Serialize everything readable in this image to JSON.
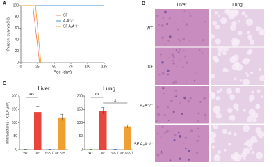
{
  "panels": {
    "labels": [
      "A",
      "B",
      "C"
    ]
  },
  "chart_data": [
    {
      "type": "line",
      "xlabel": "Age (day)",
      "ylabel": "Percent survival(%)",
      "xlim": [
        0,
        125
      ],
      "xticks": [
        0,
        25,
        50,
        75,
        100,
        125
      ],
      "ylim": [
        0,
        100
      ],
      "yticks": [
        0,
        20,
        40,
        60,
        80,
        100
      ],
      "legend": "upper right",
      "series": [
        {
          "name": "SF",
          "color": "#f08070",
          "x": [
            0,
            18,
            20,
            22,
            24,
            26,
            28
          ],
          "values": [
            100,
            100,
            80,
            60,
            40,
            20,
            0
          ]
        },
        {
          "name": "A₂A⁻/⁻",
          "color": "#4a90d9",
          "x": [
            0,
            125
          ],
          "values": [
            100,
            100
          ]
        },
        {
          "name": "SF A₂A⁻/⁻",
          "color": "#f0a030",
          "x": [
            0,
            22,
            24,
            26,
            28,
            30
          ],
          "values": [
            100,
            100,
            75,
            50,
            25,
            0
          ]
        }
      ]
    },
    {
      "type": "bar",
      "title": "Liver",
      "ylabel": "Infiltrated area ( X 10⁴ μm²)",
      "categories": [
        "WT",
        "SF",
        "A₂A⁻/⁻",
        "SF A₂A⁻/⁻"
      ],
      "values": [
        1,
        140,
        1,
        120
      ],
      "errors": [
        0.5,
        20,
        0.5,
        12
      ],
      "colors": [
        "#6ab04c",
        "#e8453c",
        "#4a90d9",
        "#f0a030"
      ],
      "ylim": [
        0,
        200
      ],
      "yticks": [
        0,
        50,
        100,
        150,
        200
      ],
      "annotations": [
        "***"
      ]
    },
    {
      "type": "bar",
      "title": "Lung",
      "categories": [
        "WT",
        "SF",
        "A₂A⁻/⁻",
        "SF A₂A⁻/⁻"
      ],
      "values": [
        1,
        145,
        1,
        87
      ],
      "errors": [
        0.5,
        12,
        0.5,
        6
      ],
      "colors": [
        "#6ab04c",
        "#e8453c",
        "#4a90d9",
        "#f0a030"
      ],
      "ylim": [
        0,
        200
      ],
      "yticks": [
        0,
        50,
        100,
        150,
        200
      ],
      "annotations": [
        "***",
        "#"
      ]
    }
  ],
  "histology": {
    "columns": [
      "Liver",
      "Lung"
    ],
    "rows": [
      "WT",
      "SF",
      "A₂A⁻/⁻",
      "SF A₂A⁻/⁻"
    ]
  }
}
